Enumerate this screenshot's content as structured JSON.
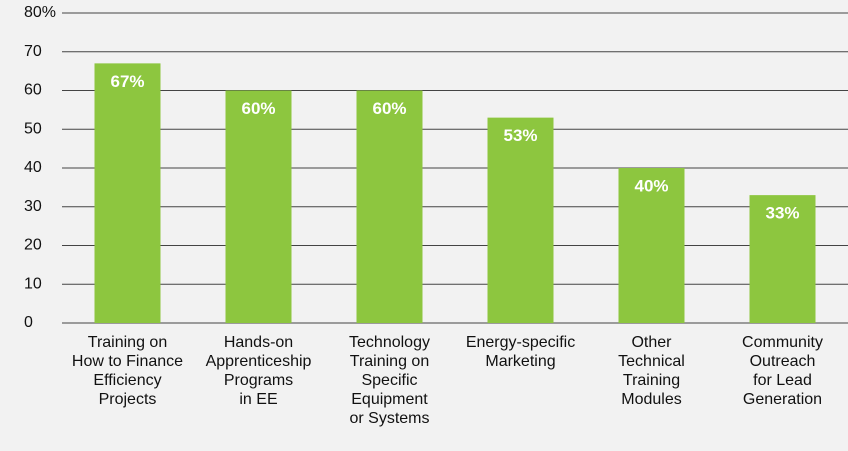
{
  "chart_data": {
    "type": "bar",
    "categories": [
      [
        "Training on",
        "How to Finance",
        "Efficiency",
        "Projects"
      ],
      [
        "Hands-on",
        "Apprenticeship",
        "Programs",
        "in EE"
      ],
      [
        "Technology",
        "Training on",
        "Specific",
        "Equipment",
        "or Systems"
      ],
      [
        "Energy-specific",
        "Marketing"
      ],
      [
        "Other",
        "Technical",
        "Training",
        "Modules"
      ],
      [
        "Community",
        "Outreach",
        "for Lead",
        "Generation"
      ]
    ],
    "values": [
      67,
      60,
      60,
      53,
      40,
      33
    ],
    "value_labels": [
      "67%",
      "60%",
      "60%",
      "53%",
      "40%",
      "33%"
    ],
    "color": "#8dc63f",
    "ylim": [
      0,
      80
    ],
    "yticks": [
      0,
      10,
      20,
      30,
      40,
      50,
      60,
      70,
      {
        "value": 80,
        "label": "80%"
      }
    ],
    "grid": true
  }
}
